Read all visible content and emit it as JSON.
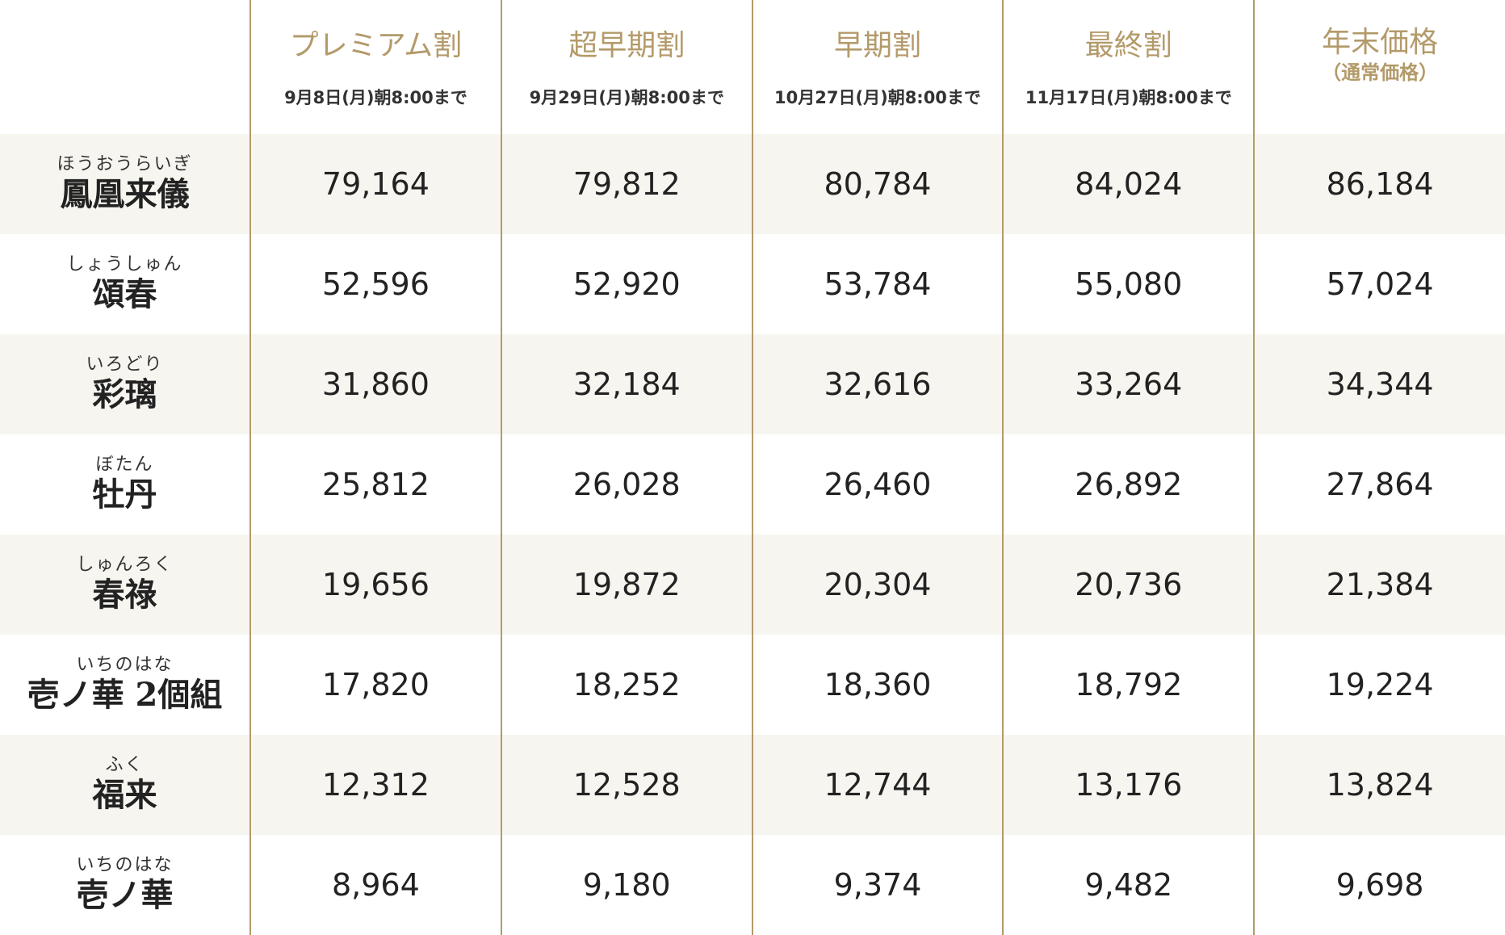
{
  "tiers": [
    {
      "name": "プレミアム割",
      "deadline": "9月8日(月)朝8:00まで"
    },
    {
      "name": "超早期割",
      "deadline": "9月29日(月)朝8:00まで"
    },
    {
      "name": "早期割",
      "deadline": "10月27日(月)朝8:00まで"
    },
    {
      "name": "最終割",
      "deadline": "11月17日(月)朝8:00まで"
    },
    {
      "name": "年末価格",
      "note": "（通常価格）"
    }
  ],
  "rows": [
    {
      "ruby": "ほうおうらいぎ",
      "name": "鳳凰来儀",
      "prices": [
        "79,164",
        "79,812",
        "80,784",
        "84,024",
        "86,184"
      ]
    },
    {
      "ruby": "しょうしゅん",
      "name": "頌春",
      "prices": [
        "52,596",
        "52,920",
        "53,784",
        "55,080",
        "57,024"
      ]
    },
    {
      "ruby": "いろどり",
      "name": "彩璃",
      "prices": [
        "31,860",
        "32,184",
        "32,616",
        "33,264",
        "34,344"
      ]
    },
    {
      "ruby": "ぼたん",
      "name": "牡丹",
      "prices": [
        "25,812",
        "26,028",
        "26,460",
        "26,892",
        "27,864"
      ]
    },
    {
      "ruby": "しゅんろく",
      "name": "春祿",
      "prices": [
        "19,656",
        "19,872",
        "20,304",
        "20,736",
        "21,384"
      ]
    },
    {
      "ruby": "いちのはな",
      "name": "壱ノ華 2個組",
      "prices": [
        "17,820",
        "18,252",
        "18,360",
        "18,792",
        "19,224"
      ]
    },
    {
      "ruby": "ふく",
      "name": "福来",
      "prices": [
        "12,312",
        "12,528",
        "12,744",
        "13,176",
        "13,824"
      ]
    },
    {
      "ruby": "いちのはな",
      "name": "壱ノ華",
      "prices": [
        "8,964",
        "9,180",
        "9,374",
        "9,482",
        "9,698"
      ]
    }
  ],
  "colors": {
    "accent_gold": "#b39a6a",
    "row_stripe": "#f7f5ef",
    "text": "#222222"
  }
}
